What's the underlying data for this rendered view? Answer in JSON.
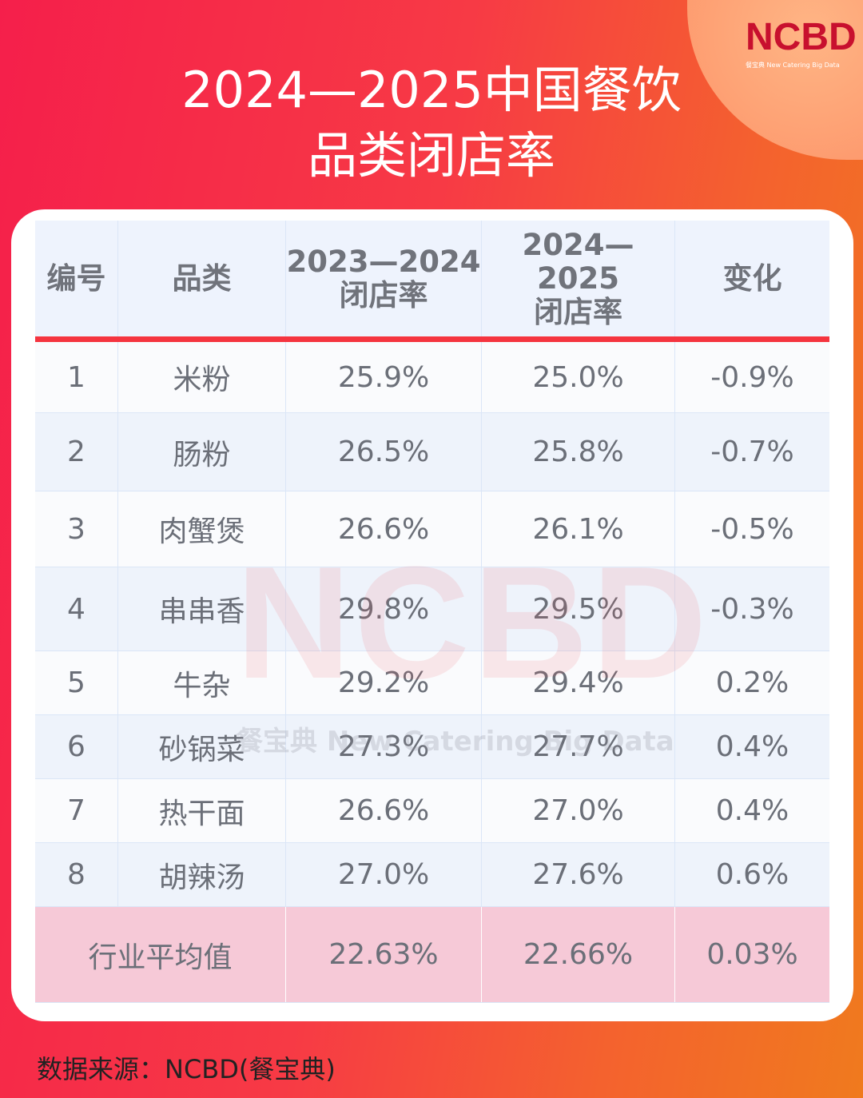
{
  "logo": {
    "text": "NCBD",
    "subtitle": "餐宝典 New Catering Big Data"
  },
  "title": {
    "line1": "2024—2025中国餐饮",
    "line2": "品类闭店率"
  },
  "table": {
    "headers": [
      "编号",
      "品类",
      "2023—2024\n闭店率",
      "2024—2025\n闭店率",
      "变化"
    ],
    "header_lines": {
      "h3a": "2023—2024",
      "h3b": "闭店率",
      "h4a": "2024—2025",
      "h4b": "闭店率"
    },
    "rows": [
      [
        "1",
        "米粉",
        "25.9%",
        "25.0%",
        "-0.9%"
      ],
      [
        "2",
        "肠粉",
        "26.5%",
        "25.8%",
        "-0.7%"
      ],
      [
        "3",
        "肉蟹煲",
        "26.6%",
        "26.1%",
        "-0.5%"
      ],
      [
        "4",
        "串串香",
        "29.8%",
        "29.5%",
        "-0.3%"
      ],
      [
        "5",
        "牛杂",
        "29.2%",
        "29.4%",
        "0.2%"
      ],
      [
        "6",
        "砂锅菜",
        "27.3%",
        "27.7%",
        "0.4%"
      ],
      [
        "7",
        "热干面",
        "26.6%",
        "27.0%",
        "0.4%"
      ],
      [
        "8",
        "胡辣汤",
        "27.0%",
        "27.6%",
        "0.6%"
      ]
    ],
    "average": {
      "label": "行业平均值",
      "v1": "22.63%",
      "v2": "22.66%",
      "change": "0.03%"
    }
  },
  "watermark": {
    "main": "NCBD",
    "sub": "餐宝典 New Catering Big Data"
  },
  "source": "数据来源：NCBD(餐宝典)",
  "colors": {
    "accent": "#f5343f",
    "logo": "#c8102e",
    "avg_row": "#f6c9d7"
  }
}
